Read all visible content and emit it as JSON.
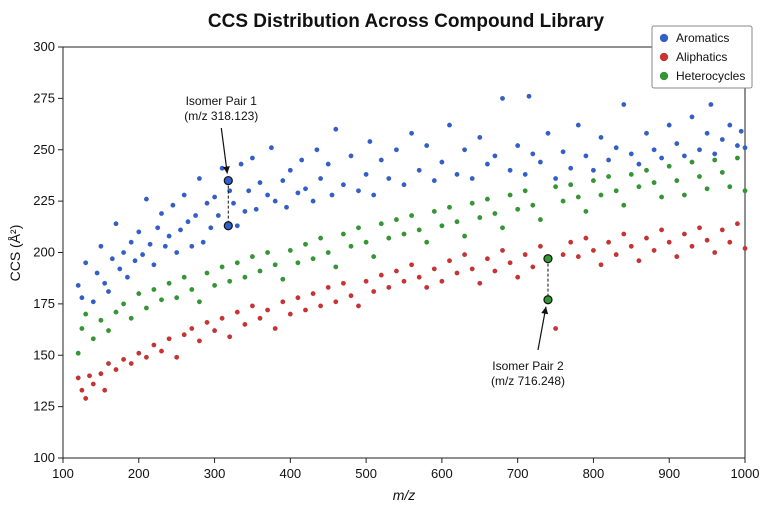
{
  "chart_data": {
    "type": "scatter",
    "title": "CCS Distribution Across Compound Library",
    "xlabel": "m/z",
    "ylabel": "CCS (Å²)",
    "xlim": [
      100,
      1000
    ],
    "ylim": [
      100,
      300
    ],
    "xticks": [
      100,
      200,
      300,
      400,
      500,
      600,
      700,
      800,
      900,
      1000
    ],
    "yticks": [
      100,
      125,
      150,
      175,
      200,
      225,
      250,
      275,
      300
    ],
    "grid": false,
    "legend_position": "top-right",
    "series": [
      {
        "name": "Aromatics",
        "color": "#3060d0",
        "points": [
          [
            120,
            184
          ],
          [
            125,
            178
          ],
          [
            130,
            195
          ],
          [
            140,
            176
          ],
          [
            145,
            190
          ],
          [
            150,
            203
          ],
          [
            155,
            185
          ],
          [
            160,
            181
          ],
          [
            165,
            197
          ],
          [
            170,
            214
          ],
          [
            175,
            192
          ],
          [
            180,
            200
          ],
          [
            185,
            188
          ],
          [
            190,
            205
          ],
          [
            195,
            196
          ],
          [
            200,
            210
          ],
          [
            205,
            199
          ],
          [
            210,
            226
          ],
          [
            215,
            204
          ],
          [
            220,
            194
          ],
          [
            225,
            212
          ],
          [
            230,
            219
          ],
          [
            235,
            203
          ],
          [
            240,
            208
          ],
          [
            245,
            223
          ],
          [
            250,
            200
          ],
          [
            255,
            211
          ],
          [
            260,
            228
          ],
          [
            265,
            215
          ],
          [
            270,
            203
          ],
          [
            275,
            218
          ],
          [
            280,
            236
          ],
          [
            285,
            205
          ],
          [
            290,
            224
          ],
          [
            295,
            212
          ],
          [
            300,
            227
          ],
          [
            305,
            218
          ],
          [
            310,
            241
          ],
          [
            320,
            230
          ],
          [
            325,
            224
          ],
          [
            330,
            213
          ],
          [
            335,
            243
          ],
          [
            340,
            220
          ],
          [
            345,
            230
          ],
          [
            350,
            246
          ],
          [
            355,
            221
          ],
          [
            360,
            234
          ],
          [
            370,
            228
          ],
          [
            375,
            251
          ],
          [
            380,
            225
          ],
          [
            390,
            235
          ],
          [
            395,
            222
          ],
          [
            400,
            240
          ],
          [
            410,
            229
          ],
          [
            415,
            245
          ],
          [
            420,
            231
          ],
          [
            430,
            225
          ],
          [
            435,
            250
          ],
          [
            440,
            236
          ],
          [
            450,
            243
          ],
          [
            455,
            228
          ],
          [
            460,
            260
          ],
          [
            470,
            233
          ],
          [
            480,
            247
          ],
          [
            490,
            230
          ],
          [
            500,
            238
          ],
          [
            505,
            254
          ],
          [
            510,
            228
          ],
          [
            520,
            245
          ],
          [
            530,
            236
          ],
          [
            540,
            250
          ],
          [
            550,
            233
          ],
          [
            560,
            258
          ],
          [
            570,
            240
          ],
          [
            580,
            252
          ],
          [
            590,
            235
          ],
          [
            600,
            244
          ],
          [
            610,
            262
          ],
          [
            620,
            238
          ],
          [
            630,
            250
          ],
          [
            640,
            236
          ],
          [
            650,
            256
          ],
          [
            660,
            243
          ],
          [
            670,
            247
          ],
          [
            680,
            275
          ],
          [
            690,
            240
          ],
          [
            700,
            252
          ],
          [
            710,
            238
          ],
          [
            715,
            276
          ],
          [
            720,
            248
          ],
          [
            730,
            244
          ],
          [
            740,
            258
          ],
          [
            750,
            236
          ],
          [
            760,
            249
          ],
          [
            770,
            241
          ],
          [
            780,
            262
          ],
          [
            790,
            247
          ],
          [
            800,
            240
          ],
          [
            810,
            256
          ],
          [
            820,
            245
          ],
          [
            830,
            251
          ],
          [
            840,
            272
          ],
          [
            850,
            248
          ],
          [
            860,
            243
          ],
          [
            870,
            258
          ],
          [
            880,
            250
          ],
          [
            890,
            246
          ],
          [
            900,
            262
          ],
          [
            910,
            253
          ],
          [
            920,
            247
          ],
          [
            930,
            266
          ],
          [
            940,
            250
          ],
          [
            950,
            258
          ],
          [
            955,
            272
          ],
          [
            960,
            248
          ],
          [
            970,
            255
          ],
          [
            980,
            262
          ],
          [
            990,
            252
          ],
          [
            995,
            259
          ],
          [
            1000,
            251
          ]
        ]
      },
      {
        "name": "Aliphatics",
        "color": "#d03030",
        "points": [
          [
            120,
            139
          ],
          [
            125,
            133
          ],
          [
            130,
            129
          ],
          [
            135,
            140
          ],
          [
            140,
            136
          ],
          [
            150,
            141
          ],
          [
            155,
            133
          ],
          [
            160,
            146
          ],
          [
            170,
            143
          ],
          [
            180,
            148
          ],
          [
            190,
            146
          ],
          [
            200,
            151
          ],
          [
            210,
            149
          ],
          [
            220,
            155
          ],
          [
            230,
            152
          ],
          [
            240,
            158
          ],
          [
            250,
            149
          ],
          [
            260,
            160
          ],
          [
            270,
            163
          ],
          [
            280,
            157
          ],
          [
            290,
            166
          ],
          [
            300,
            162
          ],
          [
            310,
            168
          ],
          [
            320,
            159
          ],
          [
            330,
            171
          ],
          [
            340,
            165
          ],
          [
            350,
            174
          ],
          [
            360,
            168
          ],
          [
            370,
            172
          ],
          [
            380,
            163
          ],
          [
            390,
            176
          ],
          [
            400,
            170
          ],
          [
            410,
            178
          ],
          [
            420,
            172
          ],
          [
            430,
            180
          ],
          [
            440,
            174
          ],
          [
            450,
            183
          ],
          [
            460,
            176
          ],
          [
            470,
            185
          ],
          [
            480,
            179
          ],
          [
            490,
            174
          ],
          [
            500,
            186
          ],
          [
            510,
            181
          ],
          [
            520,
            189
          ],
          [
            530,
            183
          ],
          [
            540,
            191
          ],
          [
            550,
            186
          ],
          [
            560,
            194
          ],
          [
            570,
            188
          ],
          [
            580,
            183
          ],
          [
            590,
            192
          ],
          [
            600,
            186
          ],
          [
            610,
            196
          ],
          [
            620,
            190
          ],
          [
            630,
            199
          ],
          [
            640,
            192
          ],
          [
            650,
            185
          ],
          [
            660,
            197
          ],
          [
            670,
            191
          ],
          [
            680,
            201
          ],
          [
            690,
            195
          ],
          [
            700,
            188
          ],
          [
            710,
            199
          ],
          [
            720,
            193
          ],
          [
            730,
            203
          ],
          [
            750,
            163
          ],
          [
            760,
            199
          ],
          [
            770,
            205
          ],
          [
            780,
            198
          ],
          [
            790,
            207
          ],
          [
            800,
            201
          ],
          [
            810,
            194
          ],
          [
            820,
            205
          ],
          [
            830,
            199
          ],
          [
            840,
            209
          ],
          [
            850,
            203
          ],
          [
            860,
            196
          ],
          [
            870,
            207
          ],
          [
            880,
            201
          ],
          [
            890,
            211
          ],
          [
            900,
            205
          ],
          [
            910,
            198
          ],
          [
            920,
            209
          ],
          [
            930,
            203
          ],
          [
            940,
            212
          ],
          [
            950,
            206
          ],
          [
            960,
            200
          ],
          [
            970,
            211
          ],
          [
            980,
            205
          ],
          [
            990,
            214
          ],
          [
            1000,
            202
          ]
        ]
      },
      {
        "name": "Heterocycles",
        "color": "#309a30",
        "points": [
          [
            120,
            151
          ],
          [
            125,
            163
          ],
          [
            130,
            170
          ],
          [
            140,
            158
          ],
          [
            150,
            167
          ],
          [
            160,
            162
          ],
          [
            170,
            171
          ],
          [
            180,
            175
          ],
          [
            190,
            168
          ],
          [
            200,
            180
          ],
          [
            210,
            173
          ],
          [
            220,
            182
          ],
          [
            230,
            177
          ],
          [
            240,
            185
          ],
          [
            250,
            178
          ],
          [
            260,
            188
          ],
          [
            270,
            182
          ],
          [
            280,
            176
          ],
          [
            290,
            190
          ],
          [
            300,
            184
          ],
          [
            310,
            193
          ],
          [
            320,
            186
          ],
          [
            330,
            195
          ],
          [
            340,
            188
          ],
          [
            350,
            198
          ],
          [
            360,
            191
          ],
          [
            370,
            200
          ],
          [
            380,
            194
          ],
          [
            390,
            187
          ],
          [
            400,
            201
          ],
          [
            410,
            195
          ],
          [
            420,
            204
          ],
          [
            430,
            197
          ],
          [
            440,
            207
          ],
          [
            450,
            200
          ],
          [
            460,
            193
          ],
          [
            470,
            209
          ],
          [
            480,
            203
          ],
          [
            490,
            212
          ],
          [
            500,
            205
          ],
          [
            510,
            198
          ],
          [
            520,
            214
          ],
          [
            530,
            207
          ],
          [
            540,
            216
          ],
          [
            550,
            209
          ],
          [
            560,
            218
          ],
          [
            570,
            211
          ],
          [
            580,
            205
          ],
          [
            590,
            220
          ],
          [
            600,
            213
          ],
          [
            610,
            222
          ],
          [
            620,
            215
          ],
          [
            630,
            208
          ],
          [
            640,
            224
          ],
          [
            650,
            217
          ],
          [
            660,
            226
          ],
          [
            670,
            219
          ],
          [
            680,
            212
          ],
          [
            690,
            228
          ],
          [
            700,
            221
          ],
          [
            710,
            230
          ],
          [
            720,
            223
          ],
          [
            730,
            216
          ],
          [
            750,
            232
          ],
          [
            760,
            225
          ],
          [
            770,
            233
          ],
          [
            780,
            227
          ],
          [
            790,
            220
          ],
          [
            800,
            235
          ],
          [
            810,
            228
          ],
          [
            820,
            237
          ],
          [
            830,
            230
          ],
          [
            840,
            223
          ],
          [
            850,
            238
          ],
          [
            860,
            232
          ],
          [
            870,
            240
          ],
          [
            880,
            234
          ],
          [
            890,
            227
          ],
          [
            900,
            242
          ],
          [
            910,
            235
          ],
          [
            920,
            228
          ],
          [
            930,
            244
          ],
          [
            940,
            237
          ],
          [
            950,
            231
          ],
          [
            960,
            245
          ],
          [
            970,
            239
          ],
          [
            980,
            232
          ],
          [
            990,
            246
          ],
          [
            1000,
            230
          ]
        ]
      }
    ],
    "annotations": [
      {
        "label_line1": "Isomer Pair 1",
        "label_line2": "(m/z 318.123)",
        "x": 318.123,
        "y_upper": 235,
        "y_lower": 213,
        "color": "#3060d0"
      },
      {
        "label_line1": "Isomer Pair 2",
        "label_line2": "(m/z 716.248)",
        "x": 740,
        "y_upper": 197,
        "y_lower": 177,
        "color": "#309a30"
      }
    ]
  }
}
